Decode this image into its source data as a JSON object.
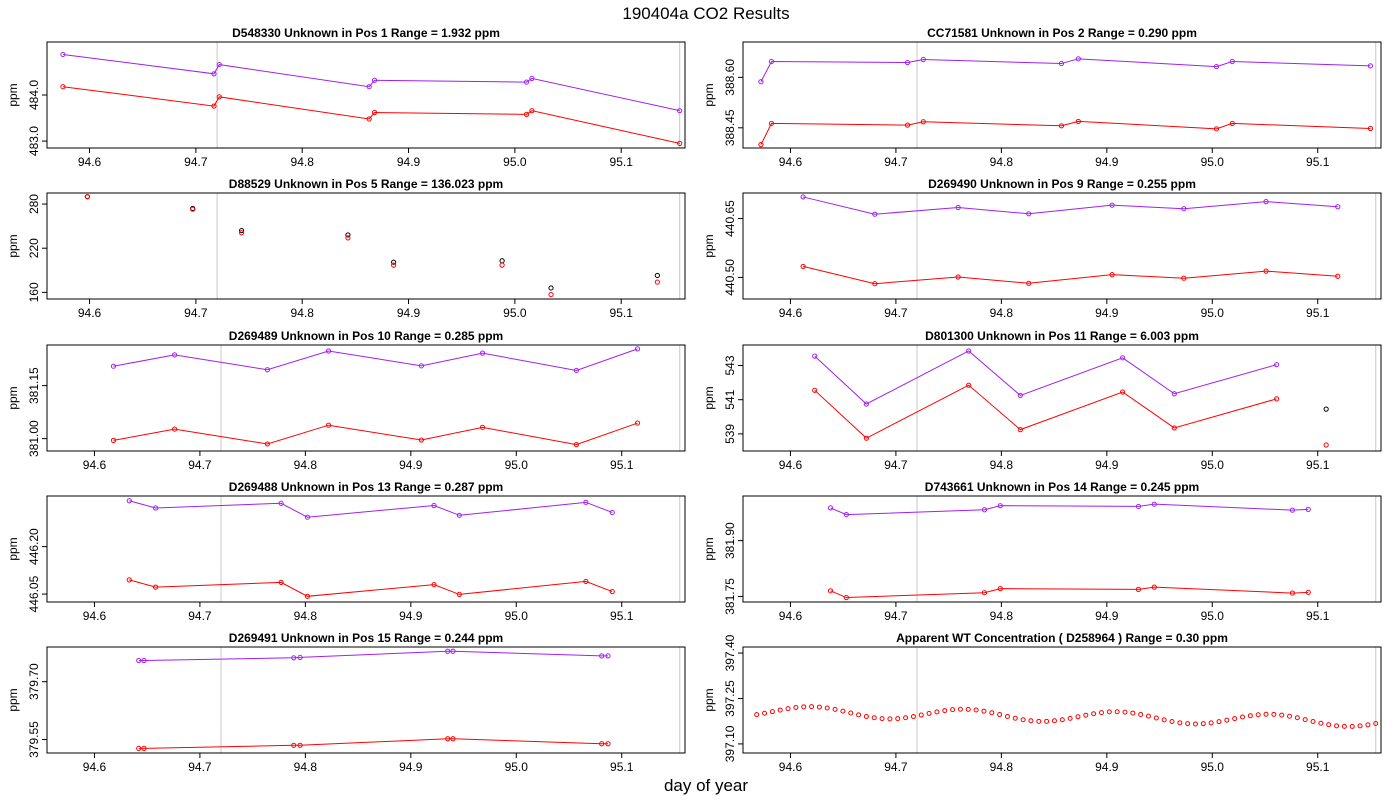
{
  "figure": {
    "title": "190404a  CO2 Results",
    "xlabel": "day of year",
    "marker_x": [
      94.72,
      95.155
    ],
    "colors": {
      "upper": "#a020f0",
      "lower": "#ff0000",
      "dark": "#000000",
      "marker": "#c8c8c8",
      "axis": "#000000"
    }
  },
  "chart_data": [
    {
      "type": "line",
      "title": "D548330    Unknown in Pos 1          Range =  1.932 ppm",
      "ylabel": "ppm",
      "xlim": [
        94.56,
        95.16
      ],
      "ylim": [
        482.85,
        485.15
      ],
      "xticks": [
        94.6,
        94.7,
        94.8,
        94.9,
        95.0,
        95.1
      ],
      "yticks": [
        483.0,
        484.0
      ],
      "series": [
        {
          "name": "upper",
          "color": "upper",
          "x": [
            94.575,
            94.717,
            94.722,
            94.863,
            94.868,
            95.011,
            95.016,
            95.155
          ],
          "y": [
            484.88,
            484.46,
            484.66,
            484.18,
            484.32,
            484.28,
            484.36,
            483.66
          ]
        },
        {
          "name": "lower",
          "color": "lower",
          "x": [
            94.575,
            94.717,
            94.722,
            94.863,
            94.868,
            95.011,
            95.016,
            95.155
          ],
          "y": [
            484.18,
            483.76,
            483.96,
            483.48,
            483.62,
            483.58,
            483.66,
            482.95
          ]
        }
      ]
    },
    {
      "type": "line",
      "title": "CC71581    Unknown in Pos 2          Range =  0.290 ppm",
      "ylabel": "ppm",
      "xlim": [
        94.555,
        95.16
      ],
      "ylim": [
        388.39,
        388.705
      ],
      "xticks": [
        94.6,
        94.7,
        94.8,
        94.9,
        95.0,
        95.1
      ],
      "yticks": [
        388.45,
        388.6
      ],
      "series": [
        {
          "name": "upper",
          "color": "upper",
          "x": [
            94.572,
            94.582,
            94.711,
            94.726,
            94.857,
            94.873,
            95.004,
            95.019,
            95.15
          ],
          "y": [
            388.587,
            388.647,
            388.644,
            388.653,
            388.641,
            388.655,
            388.632,
            388.647,
            388.634
          ]
        },
        {
          "name": "lower",
          "color": "lower",
          "x": [
            94.572,
            94.582,
            94.711,
            94.726,
            94.857,
            94.873,
            95.004,
            95.019,
            95.15
          ],
          "y": [
            388.4,
            388.463,
            388.458,
            388.468,
            388.456,
            388.469,
            388.447,
            388.463,
            388.448
          ]
        }
      ]
    },
    {
      "type": "scatter",
      "title": "D88529    Unknown in Pos 5          Range =  136.023 ppm",
      "ylabel": "ppm",
      "xlim": [
        94.56,
        95.16
      ],
      "ylim": [
        151,
        295
      ],
      "xticks": [
        94.6,
        94.7,
        94.8,
        94.9,
        95.0,
        95.1
      ],
      "yticks": [
        160,
        220,
        280
      ],
      "series": [
        {
          "name": "upper",
          "color": "dark",
          "x": [
            94.598,
            94.697,
            94.743,
            94.843,
            94.886,
            94.988,
            95.034,
            95.134
          ],
          "y": [
            290,
            274,
            244,
            238,
            201,
            203,
            166,
            183
          ]
        },
        {
          "name": "lower",
          "color": "lower",
          "x": [
            94.598,
            94.697,
            94.743,
            94.843,
            94.886,
            94.988,
            95.034,
            95.134
          ],
          "y": [
            290,
            273,
            241,
            234,
            197,
            197,
            157,
            174
          ]
        }
      ]
    },
    {
      "type": "line",
      "title": "D269490    Unknown in Pos 9          Range =  0.255 ppm",
      "ylabel": "ppm",
      "xlim": [
        94.555,
        95.16
      ],
      "ylim": [
        440.445,
        440.715
      ],
      "xticks": [
        94.6,
        94.7,
        94.8,
        94.9,
        95.0,
        95.1
      ],
      "yticks": [
        440.5,
        440.65
      ],
      "series": [
        {
          "name": "upper",
          "color": "upper",
          "x": [
            94.612,
            94.68,
            94.759,
            94.826,
            94.905,
            94.973,
            95.051,
            95.119
          ],
          "y": [
            440.705,
            440.661,
            440.678,
            440.662,
            440.684,
            440.675,
            440.693,
            440.68
          ]
        },
        {
          "name": "lower",
          "color": "lower",
          "x": [
            94.612,
            94.68,
            94.759,
            94.826,
            94.905,
            94.973,
            95.051,
            95.119
          ],
          "y": [
            440.528,
            440.484,
            440.501,
            440.485,
            440.507,
            440.498,
            440.516,
            440.503
          ]
        }
      ]
    },
    {
      "type": "line",
      "title": "D269489    Unknown in Pos 10          Range =  0.285 ppm",
      "ylabel": "ppm",
      "xlim": [
        94.555,
        95.16
      ],
      "ylim": [
        380.965,
        381.265
      ],
      "xticks": [
        94.6,
        94.7,
        94.8,
        94.9,
        95.0,
        95.1
      ],
      "yticks": [
        381.0,
        381.15
      ],
      "series": [
        {
          "name": "upper",
          "color": "upper",
          "x": [
            94.618,
            94.676,
            94.764,
            94.822,
            94.91,
            94.968,
            95.057,
            95.115
          ],
          "y": [
            381.205,
            381.237,
            381.195,
            381.248,
            381.206,
            381.242,
            381.193,
            381.254
          ]
        },
        {
          "name": "lower",
          "color": "lower",
          "x": [
            94.618,
            94.676,
            94.764,
            94.822,
            94.91,
            94.968,
            95.057,
            95.115
          ],
          "y": [
            380.995,
            381.027,
            380.985,
            381.038,
            380.996,
            381.032,
            380.983,
            381.044
          ]
        }
      ]
    },
    {
      "type": "line",
      "title": "D801300    Unknown in Pos 11          Range =  6.003 ppm",
      "ylabel": "ppm",
      "xlim": [
        94.555,
        95.16
      ],
      "ylim": [
        538.0,
        544.2
      ],
      "xticks": [
        94.6,
        94.7,
        94.8,
        94.9,
        95.0,
        95.1
      ],
      "yticks": [
        539,
        541,
        543
      ],
      "series": [
        {
          "name": "upper",
          "color": "upper",
          "x": [
            94.623,
            94.672,
            94.769,
            94.818,
            94.915,
            94.964,
            95.061
          ],
          "y": [
            543.55,
            540.75,
            543.85,
            541.25,
            543.45,
            541.35,
            543.05
          ]
        },
        {
          "name": "lower",
          "color": "lower",
          "x": [
            94.623,
            94.672,
            94.769,
            94.818,
            94.915,
            94.964,
            95.061
          ],
          "y": [
            541.55,
            538.75,
            541.85,
            539.25,
            541.45,
            539.35,
            541.05
          ]
        },
        {
          "name": "extra-upper",
          "color": "dark",
          "points_only": true,
          "x": [
            95.108
          ],
          "y": [
            540.45
          ]
        },
        {
          "name": "extra-lower",
          "color": "lower",
          "points_only": true,
          "x": [
            95.108
          ],
          "y": [
            538.35
          ]
        }
      ]
    },
    {
      "type": "line",
      "title": "D269488    Unknown in Pos 13          Range =  0.287 ppm",
      "ylabel": "ppm",
      "xlim": [
        94.555,
        95.16
      ],
      "ylim": [
        446.025,
        446.36
      ],
      "xticks": [
        94.6,
        94.7,
        94.8,
        94.9,
        95.0,
        95.1
      ],
      "yticks": [
        446.05,
        446.2
      ],
      "series": [
        {
          "name": "upper",
          "color": "upper",
          "x": [
            94.633,
            94.658,
            94.777,
            94.802,
            94.922,
            94.946,
            95.066,
            95.091
          ],
          "y": [
            446.345,
            446.322,
            446.337,
            446.293,
            446.33,
            446.299,
            446.34,
            446.308
          ]
        },
        {
          "name": "lower",
          "color": "lower",
          "x": [
            94.633,
            94.658,
            94.777,
            94.802,
            94.922,
            94.946,
            95.066,
            95.091
          ],
          "y": [
            446.095,
            446.072,
            446.087,
            446.043,
            446.08,
            446.049,
            446.09,
            446.058
          ]
        }
      ]
    },
    {
      "type": "line",
      "title": "D743661    Unknown in Pos 14          Range =  0.245 ppm",
      "ylabel": "ppm",
      "xlim": [
        94.555,
        95.16
      ],
      "ylim": [
        381.735,
        382.02
      ],
      "xticks": [
        94.6,
        94.7,
        94.8,
        94.9,
        95.0,
        95.1
      ],
      "yticks": [
        381.75,
        381.9
      ],
      "series": [
        {
          "name": "upper",
          "color": "upper",
          "x": [
            94.638,
            94.653,
            94.784,
            94.799,
            94.93,
            94.945,
            95.076,
            95.091
          ],
          "y": [
            381.988,
            381.97,
            381.983,
            381.994,
            381.992,
            381.998,
            381.982,
            381.984
          ]
        },
        {
          "name": "lower",
          "color": "lower",
          "x": [
            94.638,
            94.653,
            94.784,
            94.799,
            94.93,
            94.945,
            95.076,
            95.091
          ],
          "y": [
            381.765,
            381.747,
            381.76,
            381.771,
            381.769,
            381.775,
            381.759,
            381.761
          ]
        }
      ]
    },
    {
      "type": "line",
      "title": "D269491    Unknown in Pos 15          Range =  0.244 ppm",
      "ylabel": "ppm",
      "xlim": [
        94.555,
        95.16
      ],
      "ylim": [
        379.515,
        379.79
      ],
      "xticks": [
        94.6,
        94.7,
        94.8,
        94.9,
        95.0,
        95.1
      ],
      "yticks": [
        379.55,
        379.7
      ],
      "series": [
        {
          "name": "upper",
          "color": "upper",
          "x": [
            94.642,
            94.647,
            94.789,
            94.795,
            94.935,
            94.94,
            95.081,
            95.087
          ],
          "y": [
            379.755,
            379.755,
            379.762,
            379.763,
            379.779,
            379.779,
            379.767,
            379.767
          ]
        },
        {
          "name": "lower",
          "color": "lower",
          "x": [
            94.642,
            94.647,
            94.789,
            94.795,
            94.935,
            94.94,
            95.081,
            95.087
          ],
          "y": [
            379.527,
            379.527,
            379.535,
            379.535,
            379.552,
            379.552,
            379.539,
            379.539
          ]
        }
      ]
    },
    {
      "type": "scatter",
      "title": "Apparent WT Concentration ( D258964 )          Range = 0.30 ppm",
      "ylabel": "ppm",
      "xlim": [
        94.555,
        95.16
      ],
      "ylim": [
        397.07,
        397.42
      ],
      "xticks": [
        94.6,
        94.7,
        94.8,
        94.9,
        95.0,
        95.1
      ],
      "yticks": [
        397.1,
        397.25,
        397.4
      ],
      "curve": {
        "from": 94.568,
        "to": 95.155,
        "count": 80,
        "base": 397.208,
        "amp": 0.018,
        "trend": -0.034,
        "center": 94.62,
        "period": 0.145
      }
    }
  ]
}
